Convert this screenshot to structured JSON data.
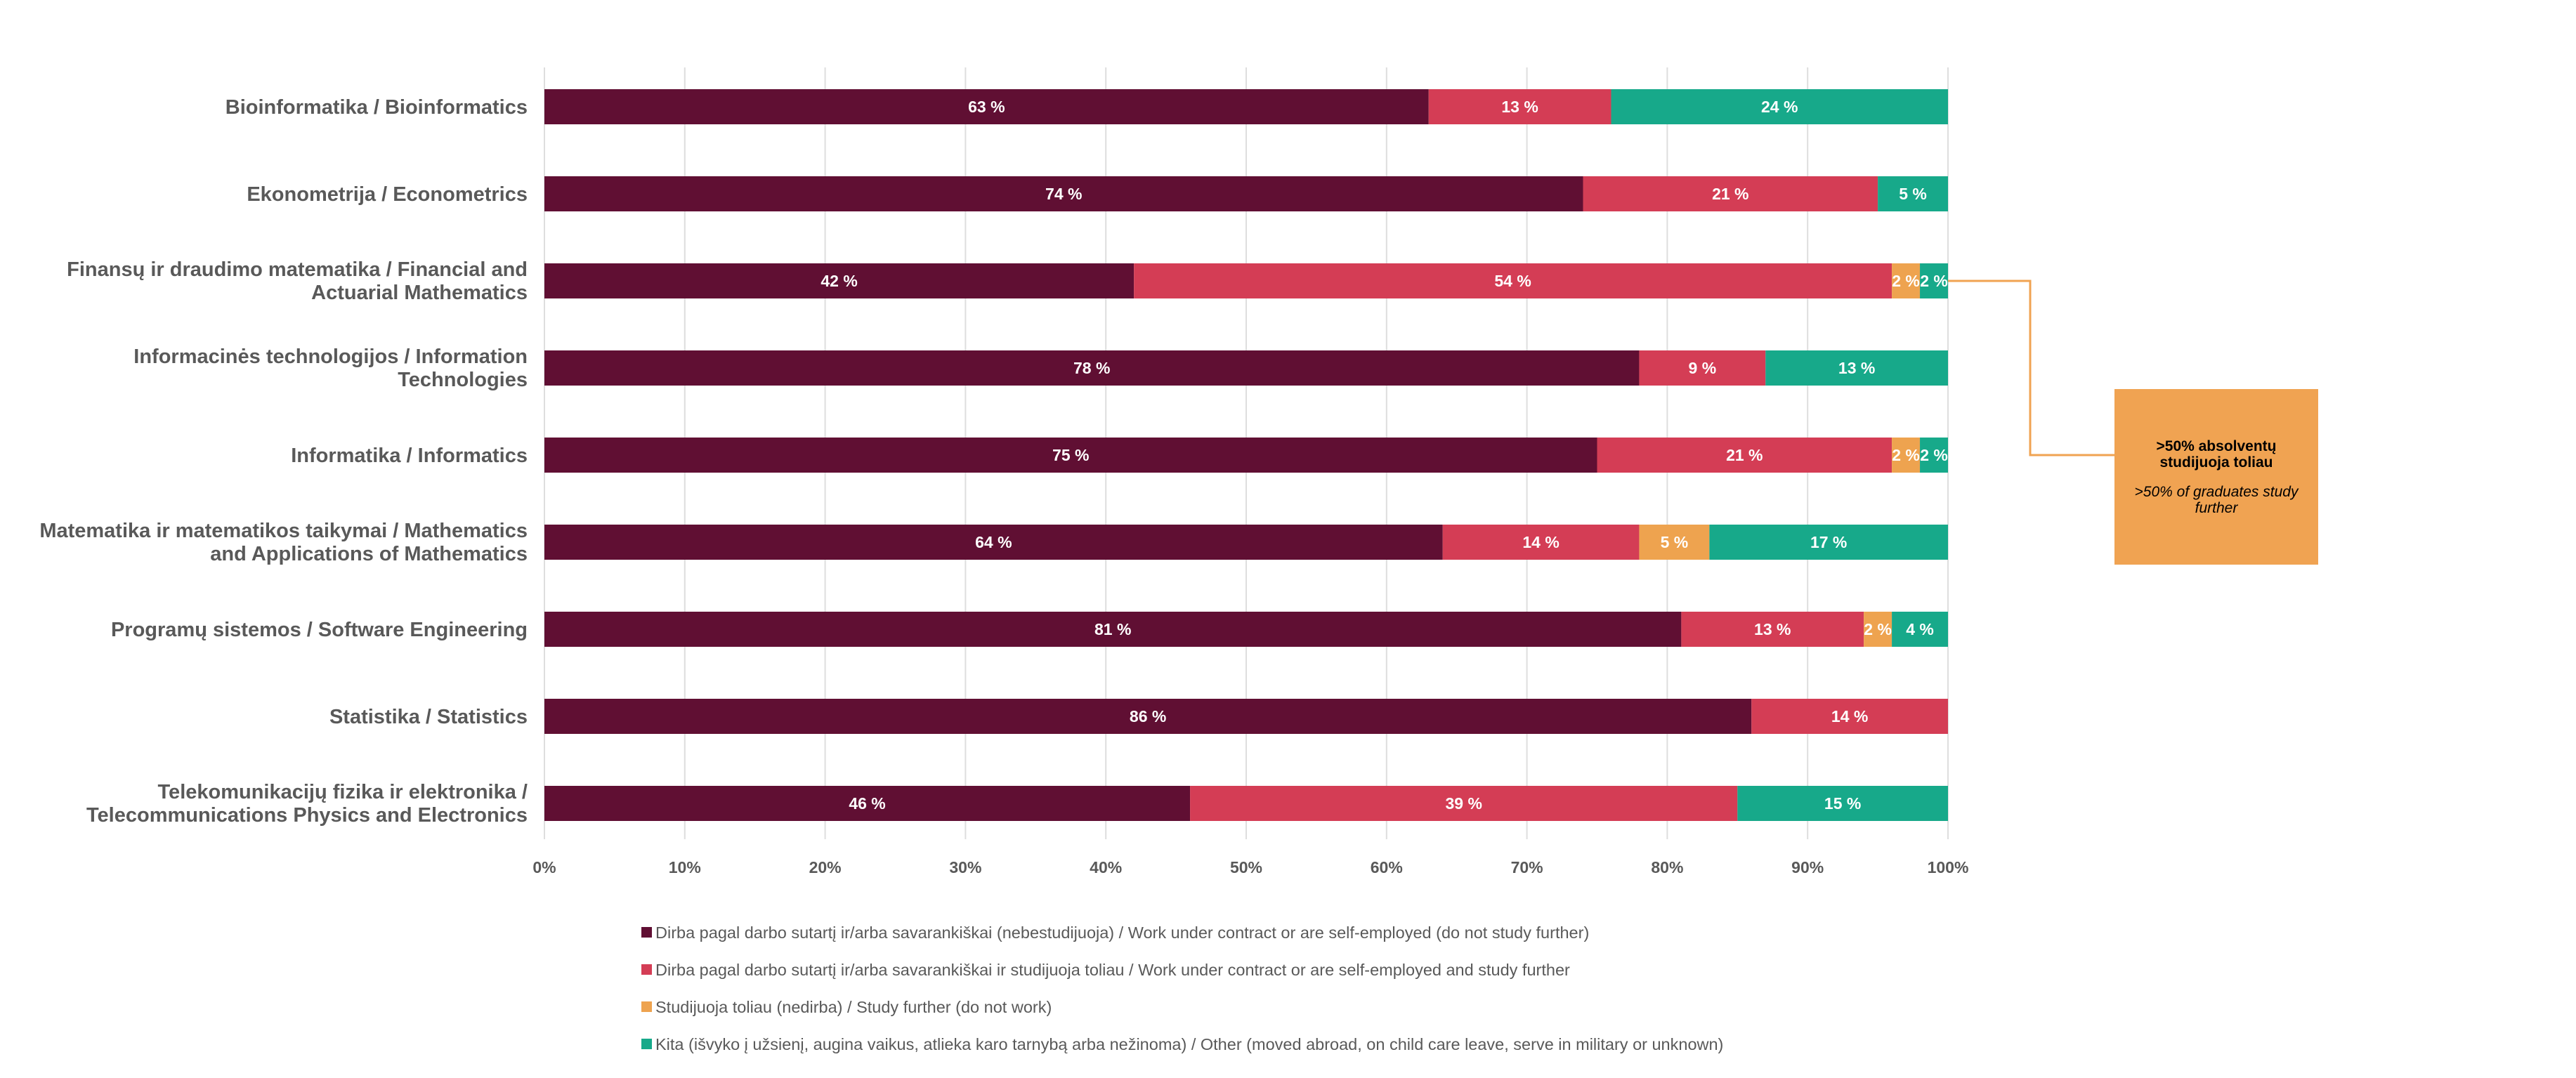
{
  "chart_data": {
    "type": "bar",
    "orientation": "horizontal",
    "stacked": true,
    "categories": [
      "Bioinformatika / Bioinformatics",
      "Ekonometrija / Econometrics",
      "Finansų ir draudimo matematika / Financial and Actuarial Mathematics",
      "Informacinės technologijos / Information Technologies",
      "Informatika / Informatics",
      "Matematika ir matematikos taikymai / Mathematics and Applications of Mathematics",
      "Programų sistemos / Software Engineering",
      "Statistika / Statistics",
      "Telekomunikacijų fizika ir elektronika / Telecommunications Physics and Electronics"
    ],
    "category_lines": [
      [
        "Bioinformatika / Bioinformatics"
      ],
      [
        "Ekonometrija / Econometrics"
      ],
      [
        "Finansų ir draudimo matematika / Financial and",
        "Actuarial Mathematics"
      ],
      [
        "Informacinės technologijos / Information",
        "Technologies"
      ],
      [
        "Informatika / Informatics"
      ],
      [
        "Matematika ir matematikos taikymai / Mathematics",
        "and Applications of Mathematics"
      ],
      [
        "Programų sistemos / Software Engineering"
      ],
      [
        "Statistika / Statistics"
      ],
      [
        "Telekomunikacijų fizika ir elektronika /",
        "Telecommunications Physics and Electronics"
      ]
    ],
    "series": [
      {
        "name": "Dirba pagal darbo sutartį ir/arba savarankiškai (nebestudijuoja) / Work under contract or are self-employed (do not study further)",
        "color": "#600f33",
        "values": [
          63,
          74,
          42,
          78,
          75,
          64,
          81,
          86,
          46
        ],
        "labels": [
          "63 %",
          "74 %",
          "42 %",
          "78 %",
          "75 %",
          "64 %",
          "81 %",
          "86 %",
          "46 %"
        ]
      },
      {
        "name": "Dirba pagal darbo sutartį ir/arba savarankiškai  ir studijuoja toliau / Work under contract or are self-employed and study further",
        "color": "#d43d55",
        "values": [
          13,
          21,
          54,
          9,
          21,
          14,
          13,
          14,
          39
        ],
        "labels": [
          "13 %",
          "21 %",
          "54 %",
          "9 %",
          "21 %",
          "14 %",
          "13 %",
          "14 %",
          "39 %"
        ]
      },
      {
        "name": "Studijuoja toliau (nedirba) / Study further (do not work)",
        "color": "#eea34f",
        "values": [
          0,
          0,
          2,
          0,
          2,
          5,
          2,
          0,
          0
        ],
        "labels": [
          "",
          "",
          "2 %",
          "",
          "2 %",
          "5 %",
          "2 %",
          "",
          ""
        ]
      },
      {
        "name": "Kita (išvyko į užsienį, augina vaikus, atlieka karo tarnybą arba nežinoma) / Other (moved abroad, on child care leave, serve in military or unknown)",
        "color": "#17a98a",
        "values": [
          24,
          5,
          2,
          13,
          2,
          17,
          4,
          0,
          15
        ],
        "labels": [
          "24 %",
          "5 %",
          "2 %",
          "13 %",
          "2 %",
          "17 %",
          "4 %",
          "",
          "15 %"
        ]
      }
    ],
    "xlim": [
      0,
      100
    ],
    "x_ticks": [
      "0%",
      "10%",
      "20%",
      "30%",
      "40%",
      "50%",
      "60%",
      "70%",
      "80%",
      "90%",
      "100%"
    ],
    "grid": true,
    "legend_position": "bottom",
    "annotation": {
      "title_lines": [
        ">50% absolventų",
        "studijuoja toliau"
      ],
      "subtitle_lines": [
        ">50% of graduates study",
        "further"
      ],
      "color": "#f0a352",
      "line_color": "#f0a352",
      "points_to": [
        "Finansų ir draudimo matematika / Financial and Actuarial Mathematics",
        "Informatika / Informatics"
      ]
    }
  }
}
